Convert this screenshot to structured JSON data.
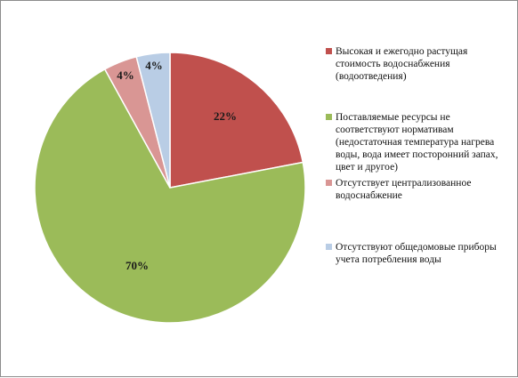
{
  "chart_data": {
    "type": "pie",
    "title": "",
    "slices": [
      {
        "label": "Высокая и ежегодно растущая стоимость водоснабжения (водоотведения)",
        "value": 22,
        "display": "22%",
        "color": "#c0504d"
      },
      {
        "label": "Поставляемые ресурсы  не соответствуют нормативам (недостаточная температура  нагрева воды, вода имеет посторонний запах, цвет и другое)",
        "value": 70,
        "display": "70%",
        "color": "#9bbb59"
      },
      {
        "label": "Отсутствует  централизованное водоснабжение",
        "value": 4,
        "display": "4%",
        "color": "#d99694"
      },
      {
        "label": "Отсутствуют  общедомовые приборы учета потребления  воды",
        "value": 4,
        "display": "4%",
        "color": "#b9cde5"
      }
    ],
    "legend_position": "right"
  }
}
